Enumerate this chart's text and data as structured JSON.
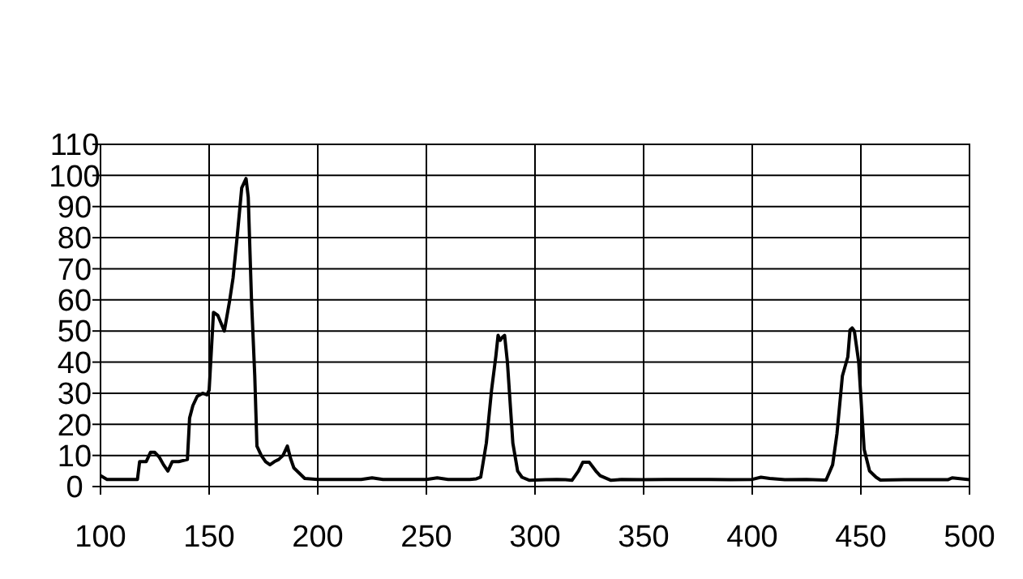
{
  "chart_data": {
    "type": "line",
    "xlim": [
      100,
      500
    ],
    "ylim": [
      0,
      110
    ],
    "xticks": [
      100,
      150,
      200,
      250,
      300,
      350,
      400,
      450,
      500
    ],
    "yticks": [
      0,
      10,
      20,
      30,
      40,
      50,
      60,
      70,
      80,
      90,
      100,
      110
    ],
    "grid": true,
    "marker": "none",
    "line_style": "solid",
    "series": [
      {
        "color": "#000000",
        "x": [
          100,
          103,
          110,
          117,
          118,
          121,
          123,
          125,
          127,
          129,
          131,
          133,
          136,
          140,
          141,
          142.5,
          144.5,
          147,
          149,
          150,
          152,
          154,
          157,
          159.5,
          161,
          163,
          165,
          167,
          168,
          169.5,
          171,
          172,
          174,
          176,
          178,
          180,
          182,
          184,
          186,
          187.5,
          189,
          194,
          200,
          210,
          220,
          225,
          230,
          240,
          250,
          255,
          260,
          265,
          270,
          273,
          275,
          277.6,
          280,
          282,
          283,
          284,
          285,
          286,
          287.3,
          289.8,
          292,
          294,
          297.5,
          305,
          310,
          314,
          317,
          320,
          322,
          325,
          328,
          330,
          335,
          340,
          350,
          360,
          370,
          380,
          390,
          400,
          404,
          408,
          415,
          425,
          434,
          437,
          439,
          441.5,
          444,
          445,
          446,
          447,
          449,
          451.5,
          454,
          457,
          459,
          470,
          480,
          490,
          492,
          500
        ],
        "values": [
          3.5,
          2.3,
          2.3,
          2.3,
          8,
          8,
          11,
          11,
          9.5,
          7,
          5,
          8,
          8,
          8.7,
          22,
          26,
          29,
          30,
          29.5,
          31,
          56,
          55,
          50,
          60,
          67,
          81,
          96,
          99,
          93,
          60,
          35.6,
          13,
          10,
          8,
          7,
          8,
          8.7,
          10,
          13,
          9,
          6,
          2.6,
          2.3,
          2.3,
          2.3,
          2.8,
          2.3,
          2.3,
          2.3,
          2.8,
          2.3,
          2.3,
          2.3,
          2.5,
          3,
          14,
          31,
          42,
          48.6,
          47,
          48,
          48.6,
          40,
          14,
          5,
          3,
          2,
          2.2,
          2.3,
          2.2,
          2,
          5,
          7.8,
          7.8,
          5,
          3.5,
          2,
          2.3,
          2.2,
          2.3,
          2.3,
          2.3,
          2.2,
          2.3,
          3,
          2.6,
          2.2,
          2.3,
          2.1,
          7,
          17,
          35.6,
          41.7,
          50.3,
          51,
          50,
          40,
          12,
          5,
          3,
          2.1,
          2.2,
          2.2,
          2.2,
          2.8,
          2.2
        ]
      }
    ]
  }
}
